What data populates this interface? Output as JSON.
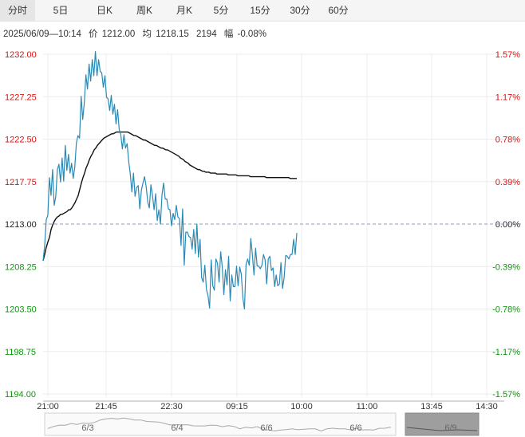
{
  "tabs": [
    {
      "label": "分时",
      "active": true
    },
    {
      "label": "5日",
      "active": false
    },
    {
      "label": "日K",
      "active": false
    },
    {
      "label": "周K",
      "active": false
    },
    {
      "label": "月K",
      "active": false
    },
    {
      "label": "5分",
      "active": false
    },
    {
      "label": "15分",
      "active": false
    },
    {
      "label": "30分",
      "active": false
    },
    {
      "label": "60分",
      "active": false
    }
  ],
  "info": {
    "datetime": "2025/06/09—10:14",
    "price_label": "价",
    "price": "1212.00",
    "avg_label": "均",
    "avg": "1218.15",
    "volume": "2194",
    "change_label": "幅",
    "change": "-0.08%"
  },
  "colors": {
    "price_line": "#2a8ab5",
    "avg_line": "#111111",
    "up": "#e01010",
    "down": "#0a9a0a",
    "ref_line": "#8a9cb5"
  },
  "chart_data": {
    "type": "line",
    "ref_price": 1213.0,
    "ylim": [
      1194.0,
      1232.0
    ],
    "y_ticks_left": [
      "1232.00",
      "1227.25",
      "1222.50",
      "1217.75",
      "1213.00",
      "1208.25",
      "1203.50",
      "1198.75",
      "1194.00"
    ],
    "y_ticks_right": [
      "1.57%",
      "1.17%",
      "0.78%",
      "0.39%",
      "0.00%",
      "-0.39%",
      "-0.78%",
      "-1.17%",
      "-1.57%"
    ],
    "x_ticks": [
      "21:00",
      "21:45",
      "22:30",
      "09:15",
      "10:00",
      "11:00",
      "13:45",
      "14:30"
    ],
    "grid": true,
    "series": [
      {
        "values": [
          1208.9,
          1210.6,
          1213.5,
          1214.0,
          1218.2,
          1216.2,
          1219.1,
          1215.1,
          1216.1,
          1219.1,
          1219.7,
          1217.7,
          1220.4,
          1217.8,
          1221.8,
          1219.0,
          1220.8,
          1218.7,
          1219.8,
          1218.1,
          1219.4,
          1222.1,
          1222.9,
          1222.6,
          1227.3,
          1224.7,
          1226.6,
          1229.7,
          1228.1,
          1230.9,
          1229.0,
          1231.4,
          1229.6,
          1232.3,
          1229.6,
          1231.4,
          1230.1,
          1229.9,
          1228.3,
          1229.6,
          1227.2,
          1227.0,
          1225.7,
          1227.4,
          1225.3,
          1226.4,
          1224.2,
          1225.8,
          1223.6,
          1223.0,
          1221.4,
          1223.0,
          1221.5,
          1222.0,
          1220.0,
          1218.6,
          1216.6,
          1218.7,
          1216.1,
          1217.1,
          1217.3,
          1214.7,
          1216.8,
          1217.6,
          1218.3,
          1217.2,
          1215.5,
          1214.8,
          1217.4,
          1216.2,
          1214.6,
          1216.4,
          1213.4,
          1214.6,
          1213.0,
          1216.3,
          1217.6,
          1215.8,
          1215.8,
          1214.7,
          1214.6,
          1212.8,
          1214.2,
          1213.5,
          1215.1,
          1213.8,
          1213.6,
          1210.6,
          1214.7,
          1208.4,
          1212.1,
          1212.1,
          1211.6,
          1211.5,
          1210.2,
          1212.4,
          1209.7,
          1213.0,
          1209.3,
          1211.3,
          1207.0,
          1206.5,
          1208.4,
          1205.7,
          1205.0,
          1203.6,
          1209.0,
          1206.1,
          1205.6,
          1209.1,
          1208.6,
          1206.5,
          1209.9,
          1208.2,
          1205.1,
          1207.9,
          1206.2,
          1209.4,
          1204.4,
          1207.3,
          1206.0,
          1206.0,
          1208.3,
          1206.1,
          1208.2,
          1207.4,
          1204.7,
          1203.5,
          1208.5,
          1209.1,
          1208.4,
          1211.4,
          1209.5,
          1207.3,
          1210.3,
          1208.3,
          1208.3,
          1208.0,
          1208.4,
          1209.6,
          1209.0,
          1206.3,
          1209.1,
          1209.4,
          1207.8,
          1208.1,
          1206.0,
          1207.3,
          1206.1,
          1206.3,
          1208.7,
          1205.8,
          1207.0,
          1209.5,
          1209.4,
          1209.1,
          1209.6,
          1209.6,
          1211.3,
          1209.6,
          1212.0
        ]
      },
      {
        "values": [
          1208.9,
          1209.6,
          1210.4,
          1211.0,
          1211.5,
          1212.4,
          1212.9,
          1213.3,
          1213.6,
          1213.8,
          1213.9,
          1214.1,
          1214.1,
          1214.2,
          1214.3,
          1214.4,
          1214.6,
          1214.6,
          1214.8,
          1215.1,
          1215.4,
          1215.8,
          1216.2,
          1216.9,
          1217.6,
          1218.2,
          1218.7,
          1219.3,
          1219.7,
          1220.2,
          1220.6,
          1220.9,
          1221.3,
          1221.5,
          1221.8,
          1222.0,
          1222.2,
          1222.4,
          1222.6,
          1222.7,
          1222.8,
          1222.9,
          1223.0,
          1223.1,
          1223.1,
          1223.2,
          1223.3,
          1223.3,
          1223.3,
          1223.3,
          1223.3,
          1223.3,
          1223.3,
          1223.3,
          1223.2,
          1223.1,
          1223.0,
          1222.9,
          1222.9,
          1222.8,
          1222.7,
          1222.6,
          1222.5,
          1222.4,
          1222.4,
          1222.3,
          1222.2,
          1222.1,
          1222.0,
          1221.9,
          1221.8,
          1221.8,
          1221.7,
          1221.6,
          1221.5,
          1221.5,
          1221.4,
          1221.3,
          1221.3,
          1221.2,
          1221.1,
          1221.0,
          1220.9,
          1220.8,
          1220.7,
          1220.6,
          1220.4,
          1220.3,
          1220.2,
          1220.0,
          1219.9,
          1219.8,
          1219.6,
          1219.5,
          1219.4,
          1219.3,
          1219.2,
          1219.1,
          1219.1,
          1219.0,
          1218.9,
          1218.9,
          1218.8,
          1218.8,
          1218.8,
          1218.7,
          1218.7,
          1218.7,
          1218.7,
          1218.6,
          1218.6,
          1218.6,
          1218.6,
          1218.6,
          1218.6,
          1218.6,
          1218.5,
          1218.5,
          1218.5,
          1218.5,
          1218.5,
          1218.5,
          1218.4,
          1218.4,
          1218.4,
          1218.4,
          1218.4,
          1218.4,
          1218.4,
          1218.4,
          1218.3,
          1218.3,
          1218.3,
          1218.3,
          1218.3,
          1218.3,
          1218.3,
          1218.3,
          1218.3,
          1218.3,
          1218.2,
          1218.2,
          1218.2,
          1218.2,
          1218.2,
          1218.2,
          1218.2,
          1218.2,
          1218.2,
          1218.2,
          1218.2,
          1218.2,
          1218.2,
          1218.2,
          1218.2,
          1218.1,
          1218.1,
          1218.1,
          1218.1,
          1218.1
        ]
      }
    ]
  },
  "navigator": {
    "dates": [
      "6/3",
      "6/4",
      "6/6",
      "6/6",
      "6/9"
    ]
  }
}
